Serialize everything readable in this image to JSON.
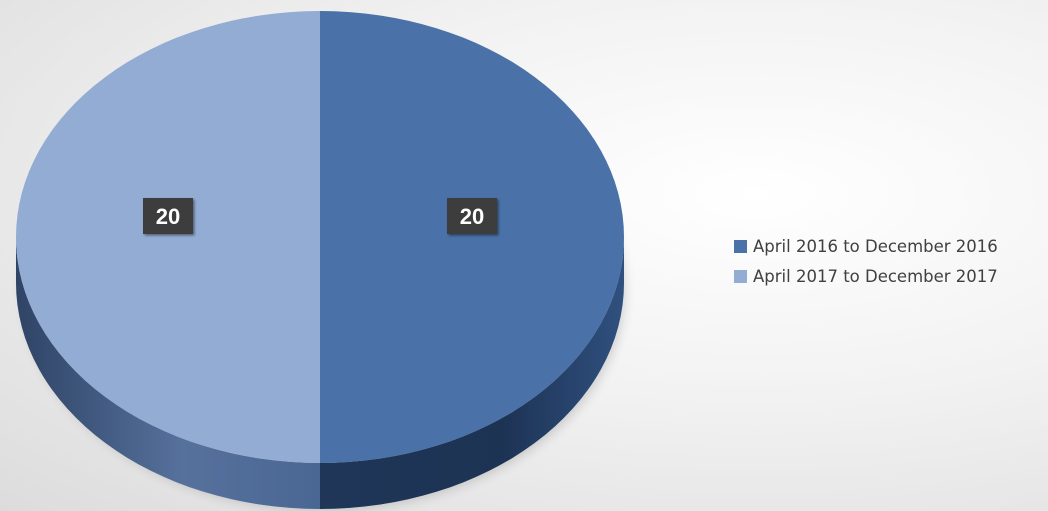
{
  "chart_data": {
    "type": "pie",
    "title": "",
    "categories": [
      "April 2016 to December 2016",
      "April 2017 to December 2017"
    ],
    "values": [
      20,
      20
    ],
    "data_labels": [
      "20",
      "20"
    ],
    "colors": [
      "#4a72a8",
      "#93acd4"
    ],
    "side_colors": [
      "#263e60",
      "#4a5f86"
    ],
    "legend": {
      "placement": "right",
      "entries": [
        "April 2016 to December 2016",
        "April 2017 to December 2017"
      ]
    },
    "style": "3d"
  }
}
